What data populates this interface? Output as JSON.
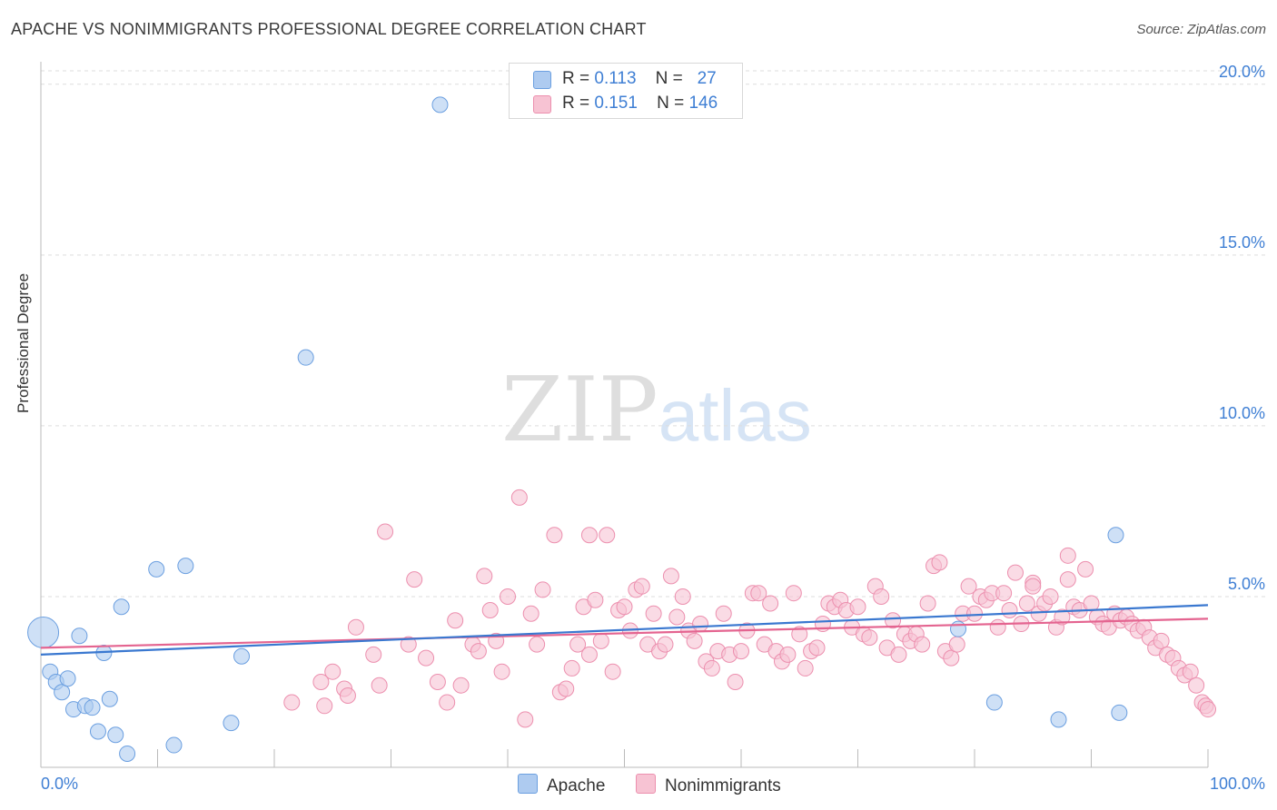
{
  "header": {
    "title": "APACHE VS NONIMMIGRANTS PROFESSIONAL DEGREE CORRELATION CHART",
    "source": "Source: ZipAtlas.com"
  },
  "watermark": {
    "zip": "ZIP",
    "atlas": "atlas"
  },
  "legend": {
    "apache": {
      "r_label": "R =",
      "r_value": "0.113",
      "n_label": "N =",
      "n_value": "27",
      "color": "#aecbf0"
    },
    "nonimmigrants": {
      "r_label": "R =",
      "r_value": "0.151",
      "n_label": "N =",
      "n_value": "146",
      "color": "#f7b9cc"
    }
  },
  "bottom_legend": {
    "apache": "Apache",
    "nonimmigrants": "Nonimmigrants"
  },
  "colors": {
    "apache_fill": "#aecbf0",
    "apache_stroke": "#6b9fe0",
    "apache_line": "#3a78d0",
    "nonimmigrants_fill": "#f7c3d3",
    "nonimmigrants_stroke": "#ec8fae",
    "nonimmigrants_line": "#e46490",
    "grid": "#dddddd",
    "tick_label": "#3f7fd4"
  },
  "chart_data": {
    "type": "scatter",
    "title": "APACHE VS NONIMMIGRANTS PROFESSIONAL DEGREE CORRELATION CHART",
    "xlabel": "",
    "ylabel": "Professional Degree",
    "xlim": [
      0,
      100
    ],
    "ylim": [
      0,
      20.5
    ],
    "x_tick_labels": [
      "0.0%",
      "100.0%"
    ],
    "y_ticks": [
      5,
      10,
      15,
      20
    ],
    "y_tick_labels": [
      "5.0%",
      "10.0%",
      "15.0%",
      "20.0%"
    ],
    "grid": "horizontal dashed",
    "legend": "top-center",
    "series": [
      {
        "name": "Apache",
        "r": 0.113,
        "n": 27,
        "trend": [
          [
            0,
            3.3
          ],
          [
            100,
            4.75
          ]
        ],
        "points": [
          [
            0.2,
            3.95,
            "large"
          ],
          [
            0.8,
            2.8
          ],
          [
            1.3,
            2.5
          ],
          [
            1.8,
            2.2
          ],
          [
            2.3,
            2.6
          ],
          [
            2.8,
            1.7
          ],
          [
            3.3,
            3.85
          ],
          [
            3.8,
            1.8
          ],
          [
            4.4,
            1.75
          ],
          [
            4.9,
            1.05
          ],
          [
            5.4,
            3.35
          ],
          [
            5.9,
            2.0
          ],
          [
            6.4,
            0.95
          ],
          [
            6.9,
            4.7
          ],
          [
            7.4,
            0.4
          ],
          [
            9.9,
            5.8
          ],
          [
            11.4,
            0.65
          ],
          [
            12.4,
            5.9
          ],
          [
            16.3,
            1.3
          ],
          [
            17.2,
            3.25
          ],
          [
            22.7,
            12.0
          ],
          [
            34.2,
            19.4
          ],
          [
            78.6,
            4.05
          ],
          [
            81.7,
            1.9
          ],
          [
            87.2,
            1.4
          ],
          [
            92.1,
            6.8
          ],
          [
            92.4,
            1.6
          ]
        ]
      },
      {
        "name": "Nonimmigrants",
        "r": 0.151,
        "n": 146,
        "trend": [
          [
            0,
            3.5
          ],
          [
            100,
            4.35
          ]
        ],
        "points": [
          [
            21.5,
            1.9
          ],
          [
            24.0,
            2.5
          ],
          [
            24.3,
            1.8
          ],
          [
            25.0,
            2.8
          ],
          [
            26.0,
            2.3
          ],
          [
            26.3,
            2.1
          ],
          [
            27.0,
            4.1
          ],
          [
            28.5,
            3.3
          ],
          [
            29.0,
            2.4
          ],
          [
            29.5,
            6.9
          ],
          [
            31.5,
            3.6
          ],
          [
            32.0,
            5.5
          ],
          [
            33.0,
            3.2
          ],
          [
            34.0,
            2.5
          ],
          [
            34.8,
            1.9
          ],
          [
            35.5,
            4.3
          ],
          [
            36.0,
            2.4
          ],
          [
            37.0,
            3.6
          ],
          [
            37.5,
            3.4
          ],
          [
            38.0,
            5.6
          ],
          [
            38.5,
            4.6
          ],
          [
            39.0,
            3.7
          ],
          [
            39.5,
            2.8
          ],
          [
            40.0,
            5.0
          ],
          [
            41.0,
            7.9
          ],
          [
            41.5,
            1.4
          ],
          [
            42.0,
            4.5
          ],
          [
            42.5,
            3.6
          ],
          [
            43.0,
            5.2
          ],
          [
            44.0,
            6.8
          ],
          [
            44.5,
            2.2
          ],
          [
            45.0,
            2.3
          ],
          [
            45.5,
            2.9
          ],
          [
            46.0,
            3.6
          ],
          [
            46.5,
            4.7
          ],
          [
            47.0,
            3.3
          ],
          [
            47.5,
            4.9
          ],
          [
            48.0,
            3.7
          ],
          [
            48.5,
            6.8
          ],
          [
            49.0,
            2.8
          ],
          [
            49.5,
            4.6
          ],
          [
            50.0,
            4.7
          ],
          [
            50.5,
            4.0
          ],
          [
            51.0,
            5.2
          ],
          [
            51.5,
            5.3
          ],
          [
            52.0,
            3.6
          ],
          [
            52.5,
            4.5
          ],
          [
            53.0,
            3.4
          ],
          [
            53.5,
            3.6
          ],
          [
            54.0,
            5.6
          ],
          [
            54.5,
            4.4
          ],
          [
            55.0,
            5.0
          ],
          [
            55.5,
            4.0
          ],
          [
            56.0,
            3.7
          ],
          [
            56.5,
            4.2
          ],
          [
            57.0,
            3.1
          ],
          [
            57.5,
            2.9
          ],
          [
            58.0,
            3.4
          ],
          [
            58.5,
            4.5
          ],
          [
            59.0,
            3.3
          ],
          [
            59.5,
            2.5
          ],
          [
            60.0,
            3.4
          ],
          [
            60.5,
            4.0
          ],
          [
            61.0,
            5.1
          ],
          [
            62.0,
            3.6
          ],
          [
            62.5,
            4.8
          ],
          [
            63.0,
            3.4
          ],
          [
            63.5,
            3.1
          ],
          [
            64.0,
            3.3
          ],
          [
            64.5,
            5.1
          ],
          [
            65.0,
            3.9
          ],
          [
            65.5,
            2.9
          ],
          [
            66.0,
            3.4
          ],
          [
            66.5,
            3.5
          ],
          [
            67.0,
            4.2
          ],
          [
            67.5,
            4.8
          ],
          [
            68.0,
            4.7
          ],
          [
            68.5,
            4.9
          ],
          [
            69.0,
            4.6
          ],
          [
            69.5,
            4.1
          ],
          [
            70.0,
            4.7
          ],
          [
            70.5,
            3.9
          ],
          [
            71.0,
            3.8
          ],
          [
            71.5,
            5.3
          ],
          [
            72.0,
            5.0
          ],
          [
            72.5,
            3.5
          ],
          [
            73.0,
            4.3
          ],
          [
            73.5,
            3.3
          ],
          [
            74.0,
            3.9
          ],
          [
            74.5,
            3.7
          ],
          [
            75.0,
            3.9
          ],
          [
            75.5,
            3.6
          ],
          [
            76.0,
            4.8
          ],
          [
            76.5,
            5.9
          ],
          [
            77.0,
            6.0
          ],
          [
            77.5,
            3.4
          ],
          [
            78.0,
            3.2
          ],
          [
            78.5,
            3.6
          ],
          [
            79.0,
            4.5
          ],
          [
            79.5,
            5.3
          ],
          [
            80.0,
            4.5
          ],
          [
            80.5,
            5.0
          ],
          [
            81.0,
            4.9
          ],
          [
            81.5,
            5.1
          ],
          [
            82.0,
            4.1
          ],
          [
            82.5,
            5.1
          ],
          [
            83.0,
            4.6
          ],
          [
            83.5,
            5.7
          ],
          [
            84.0,
            4.2
          ],
          [
            84.5,
            4.8
          ],
          [
            85.0,
            5.4
          ],
          [
            85.5,
            4.5
          ],
          [
            86.0,
            4.8
          ],
          [
            86.5,
            5.0
          ],
          [
            87.0,
            4.1
          ],
          [
            87.5,
            4.4
          ],
          [
            88.0,
            5.5
          ],
          [
            88.5,
            4.7
          ],
          [
            89.0,
            4.6
          ],
          [
            89.5,
            5.8
          ],
          [
            90.0,
            4.8
          ],
          [
            90.5,
            4.4
          ],
          [
            91.0,
            4.2
          ],
          [
            91.5,
            4.1
          ],
          [
            92.0,
            4.5
          ],
          [
            92.5,
            4.3
          ],
          [
            93.0,
            4.4
          ],
          [
            93.5,
            4.2
          ],
          [
            94.0,
            4.0
          ],
          [
            94.5,
            4.1
          ],
          [
            95.0,
            3.8
          ],
          [
            95.5,
            3.5
          ],
          [
            96.0,
            3.7
          ],
          [
            96.5,
            3.3
          ],
          [
            97.0,
            3.2
          ],
          [
            97.5,
            2.9
          ],
          [
            98.0,
            2.7
          ],
          [
            98.5,
            2.8
          ],
          [
            99.0,
            2.4
          ],
          [
            99.5,
            1.9
          ],
          [
            99.8,
            1.8
          ],
          [
            100.0,
            1.7
          ],
          [
            88.0,
            6.2
          ],
          [
            85.0,
            5.3
          ],
          [
            61.5,
            5.1
          ],
          [
            47.0,
            6.8
          ]
        ]
      }
    ]
  }
}
